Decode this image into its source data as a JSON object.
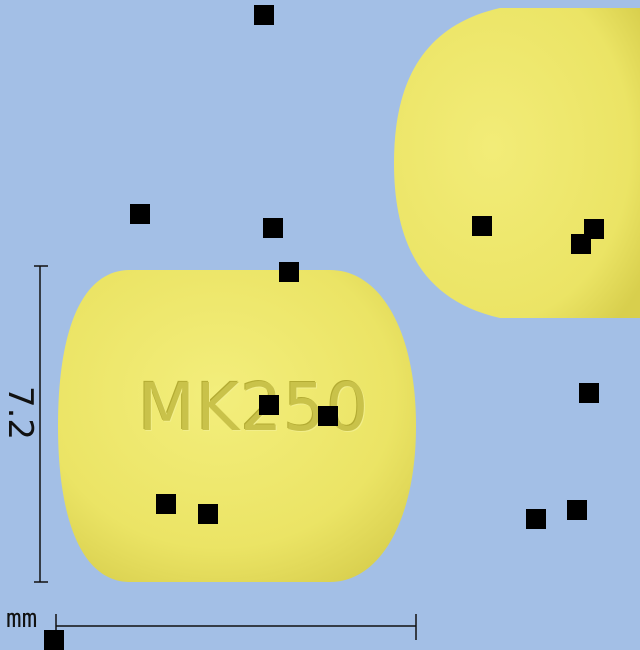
{
  "scene": {
    "background_color": "#a3bfe6",
    "pill_color": "#ede66a",
    "marker_color": "#000000"
  },
  "tablet_front": {
    "imprint": "MK250"
  },
  "scale": {
    "height_value": "7.2",
    "unit": "mm"
  }
}
